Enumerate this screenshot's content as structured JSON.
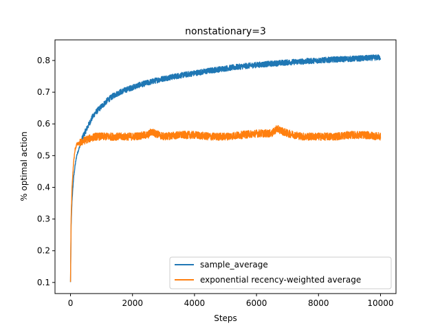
{
  "chart_data": {
    "type": "line",
    "title": "nonstationary=3",
    "xlabel": "Steps",
    "ylabel": "% optimal action",
    "xlim": [
      -500,
      10500
    ],
    "ylim": [
      0.065,
      0.865
    ],
    "xticks": [
      0,
      2000,
      4000,
      6000,
      8000,
      10000
    ],
    "xtick_labels": [
      "0",
      "2000",
      "4000",
      "6000",
      "8000",
      "10000"
    ],
    "yticks": [
      0.1,
      0.2,
      0.3,
      0.4,
      0.5,
      0.6,
      0.7,
      0.8
    ],
    "ytick_labels": [
      "0.1",
      "0.2",
      "0.3",
      "0.4",
      "0.5",
      "0.6",
      "0.7",
      "0.8"
    ],
    "grid": false,
    "legend_position": "lower-right",
    "series": [
      {
        "name": "sample_average",
        "color": "#1f77b4",
        "x": [
          0,
          20,
          50,
          100,
          150,
          200,
          300,
          400,
          500,
          600,
          700,
          800,
          1000,
          1200,
          1400,
          1600,
          1800,
          2000,
          2200,
          2500,
          2800,
          3000,
          3500,
          4000,
          4500,
          5000,
          5500,
          6000,
          6500,
          7000,
          7500,
          8000,
          8500,
          9000,
          9500,
          10000
        ],
        "y": [
          0.1,
          0.28,
          0.36,
          0.43,
          0.47,
          0.5,
          0.53,
          0.56,
          0.58,
          0.6,
          0.62,
          0.635,
          0.655,
          0.675,
          0.69,
          0.7,
          0.708,
          0.715,
          0.722,
          0.73,
          0.738,
          0.743,
          0.752,
          0.76,
          0.768,
          0.775,
          0.781,
          0.786,
          0.79,
          0.794,
          0.797,
          0.8,
          0.803,
          0.805,
          0.807,
          0.81
        ],
        "noise": 0.009
      },
      {
        "name": "exponential recency-weighted average",
        "color": "#ff7f0e",
        "x": [
          0,
          20,
          50,
          100,
          150,
          200,
          300,
          400,
          500,
          800,
          1000,
          1500,
          2000,
          2500,
          2600,
          3000,
          3500,
          4000,
          4500,
          5000,
          5500,
          6000,
          6500,
          6650,
          7000,
          7500,
          8000,
          8500,
          9000,
          9500,
          10000
        ],
        "y": [
          0.1,
          0.3,
          0.4,
          0.48,
          0.52,
          0.535,
          0.54,
          0.545,
          0.55,
          0.56,
          0.56,
          0.56,
          0.56,
          0.565,
          0.575,
          0.56,
          0.565,
          0.565,
          0.56,
          0.56,
          0.565,
          0.57,
          0.57,
          0.585,
          0.57,
          0.56,
          0.56,
          0.56,
          0.565,
          0.565,
          0.56
        ],
        "noise": 0.012
      }
    ]
  }
}
